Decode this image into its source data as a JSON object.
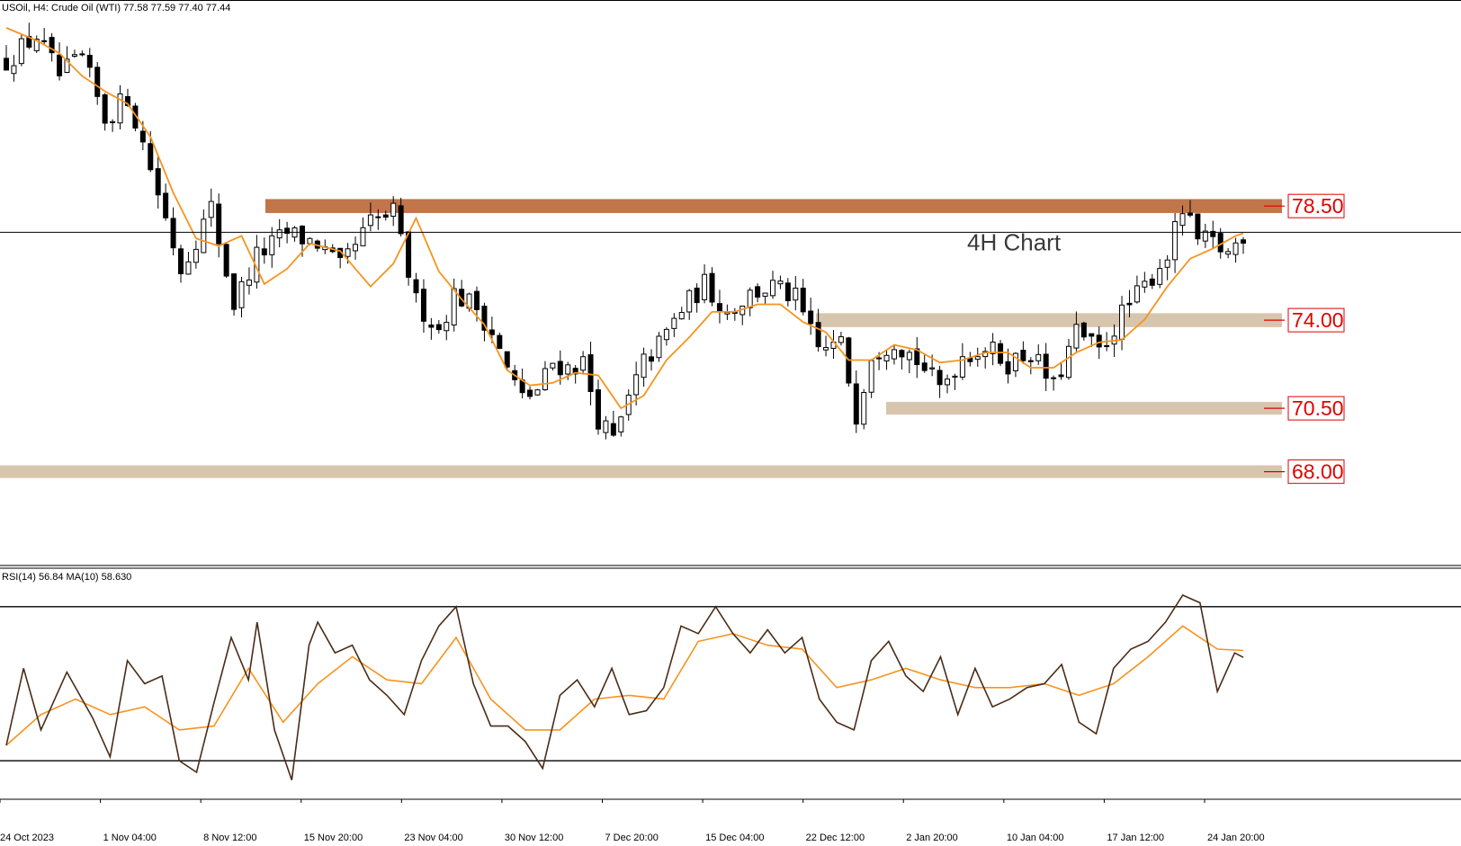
{
  "header": {
    "symbol_text": "USOil, H4:  Crude Oil (WTI)  77.58 77.59 77.40 77.44",
    "rsi_text": "RSI(14) 56.84 MA(10) 58.630"
  },
  "annotation": "4H Chart",
  "colors": {
    "resistance_zone": "#c0764a",
    "support_zone": "#d8c5ad",
    "ma_line": "#f7931e",
    "candle": "#000000",
    "rsi_line": "#4a2c17",
    "level_label": "#e00000"
  },
  "chart_data": [
    {
      "type": "candlestick",
      "symbol": "USOil",
      "timeframe": "H4",
      "current_price": 77.44,
      "ylim": [
        64.3,
        86.6
      ],
      "x_ticks": [
        "24 Oct 2023",
        "1 Nov 04:00",
        "8 Nov 12:00",
        "15 Nov 20:00",
        "23 Nov 04:00",
        "30 Nov 12:00",
        "7 Dec 20:00",
        "15 Dec 04:00",
        "22 Dec 12:00",
        "2 Jan 20:00",
        "10 Jan 04:00",
        "17 Jan 12:00",
        "24 Jan 20:00"
      ],
      "close_path": [
        [
          0,
          84.2
        ],
        [
          4,
          85.2
        ],
        [
          7,
          83.6
        ],
        [
          10,
          84.3
        ],
        [
          13,
          81.9
        ],
        [
          16,
          82.8
        ],
        [
          19,
          80.0
        ],
        [
          21,
          78.0
        ],
        [
          23,
          76.0
        ],
        [
          25,
          77.2
        ],
        [
          27,
          78.4
        ],
        [
          30,
          74.6
        ],
        [
          33,
          76.5
        ],
        [
          37,
          77.4
        ],
        [
          41,
          77.0
        ],
        [
          44,
          76.0
        ],
        [
          48,
          77.8
        ],
        [
          51,
          78.2
        ],
        [
          54,
          74.7
        ],
        [
          57,
          73.6
        ],
        [
          59,
          75.0
        ],
        [
          62,
          74.5
        ],
        [
          64,
          73.5
        ],
        [
          66,
          72.0
        ],
        [
          68,
          70.9
        ],
        [
          70,
          71.2
        ],
        [
          72,
          72.3
        ],
        [
          74,
          72.1
        ],
        [
          76,
          72.3
        ],
        [
          78,
          70.1
        ],
        [
          80,
          69.2
        ],
        [
          82,
          70.8
        ],
        [
          84,
          72.3
        ],
        [
          86,
          73.0
        ],
        [
          89,
          74.4
        ],
        [
          92,
          75.4
        ],
        [
          95,
          74.3
        ],
        [
          98,
          75.0
        ],
        [
          101,
          75.3
        ],
        [
          104,
          74.8
        ],
        [
          107,
          72.8
        ],
        [
          110,
          73.0
        ],
        [
          112,
          70.3
        ],
        [
          114,
          72.7
        ],
        [
          117,
          73.2
        ],
        [
          120,
          72.4
        ],
        [
          123,
          71.3
        ],
        [
          126,
          72.6
        ],
        [
          129,
          72.9
        ],
        [
          132,
          72.3
        ],
        [
          135,
          72.7
        ],
        [
          138,
          71.3
        ],
        [
          141,
          73.5
        ],
        [
          144,
          72.7
        ],
        [
          147,
          74.2
        ],
        [
          150,
          75.3
        ],
        [
          153,
          76.6
        ],
        [
          155,
          78.3
        ],
        [
          157,
          77.1
        ],
        [
          159,
          77.0
        ],
        [
          161,
          76.6
        ],
        [
          163,
          77.4
        ]
      ],
      "moving_average_path": [
        [
          0,
          85.5
        ],
        [
          4,
          85.0
        ],
        [
          7,
          84.5
        ],
        [
          10,
          83.6
        ],
        [
          13,
          83.0
        ],
        [
          16,
          82.5
        ],
        [
          19,
          81.2
        ],
        [
          22,
          79.0
        ],
        [
          25,
          77.2
        ],
        [
          28,
          76.9
        ],
        [
          31,
          77.3
        ],
        [
          34,
          75.4
        ],
        [
          37,
          76.0
        ],
        [
          40,
          77.0
        ],
        [
          44,
          76.7
        ],
        [
          48,
          75.3
        ],
        [
          51,
          76.2
        ],
        [
          54,
          78.0
        ],
        [
          57,
          75.9
        ],
        [
          60,
          74.8
        ],
        [
          63,
          73.8
        ],
        [
          66,
          72.0
        ],
        [
          69,
          71.4
        ],
        [
          72,
          71.5
        ],
        [
          75,
          71.9
        ],
        [
          78,
          71.8
        ],
        [
          81,
          70.5
        ],
        [
          84,
          71.0
        ],
        [
          87,
          72.4
        ],
        [
          90,
          73.3
        ],
        [
          93,
          74.3
        ],
        [
          96,
          74.3
        ],
        [
          99,
          74.6
        ],
        [
          102,
          74.6
        ],
        [
          105,
          73.9
        ],
        [
          108,
          73.5
        ],
        [
          111,
          72.4
        ],
        [
          114,
          72.4
        ],
        [
          117,
          73.0
        ],
        [
          120,
          72.8
        ],
        [
          123,
          72.3
        ],
        [
          126,
          72.4
        ],
        [
          129,
          72.7
        ],
        [
          132,
          72.7
        ],
        [
          135,
          72.1
        ],
        [
          138,
          72.1
        ],
        [
          141,
          72.7
        ],
        [
          144,
          73.1
        ],
        [
          147,
          73.2
        ],
        [
          150,
          74.0
        ],
        [
          153,
          75.3
        ],
        [
          156,
          76.4
        ],
        [
          159,
          76.8
        ],
        [
          162,
          77.3
        ],
        [
          163,
          77.4
        ]
      ],
      "levels": [
        {
          "label": "78.50",
          "low": 78.2,
          "high": 78.75,
          "role": "resistance"
        },
        {
          "label": "74.00",
          "low": 73.7,
          "high": 74.25,
          "role": "support"
        },
        {
          "label": "70.50",
          "low": 70.25,
          "high": 70.75,
          "role": "support"
        },
        {
          "label": "68.00",
          "low": 67.75,
          "high": 68.25,
          "role": "support"
        }
      ]
    },
    {
      "type": "line",
      "indicator": "RSI(14)",
      "rsi_value": 56.84,
      "ma_period": 10,
      "ma_value": 58.63,
      "ylim": [
        20,
        80
      ],
      "levels": [
        70,
        30
      ],
      "rsi_path": [
        [
          0,
          34
        ],
        [
          2,
          54
        ],
        [
          4,
          38
        ],
        [
          7,
          53
        ],
        [
          10,
          41
        ],
        [
          12,
          31
        ],
        [
          14,
          56
        ],
        [
          16,
          50
        ],
        [
          18,
          52
        ],
        [
          20,
          30
        ],
        [
          22,
          27
        ],
        [
          24,
          45
        ],
        [
          26,
          62
        ],
        [
          28,
          51
        ],
        [
          29,
          66
        ],
        [
          31,
          38
        ],
        [
          33,
          25
        ],
        [
          35,
          60
        ],
        [
          36,
          66
        ],
        [
          38,
          58
        ],
        [
          40,
          60
        ],
        [
          42,
          51
        ],
        [
          44,
          47
        ],
        [
          46,
          42
        ],
        [
          48,
          56
        ],
        [
          50,
          65
        ],
        [
          52,
          70
        ],
        [
          54,
          50
        ],
        [
          56,
          39
        ],
        [
          58,
          39
        ],
        [
          60,
          35
        ],
        [
          62,
          28
        ],
        [
          64,
          47
        ],
        [
          66,
          51
        ],
        [
          68,
          44
        ],
        [
          70,
          54
        ],
        [
          72,
          42
        ],
        [
          74,
          43
        ],
        [
          76,
          49
        ],
        [
          78,
          65
        ],
        [
          80,
          63
        ],
        [
          82,
          70
        ],
        [
          84,
          63
        ],
        [
          86,
          58
        ],
        [
          88,
          64
        ],
        [
          90,
          58
        ],
        [
          92,
          62
        ],
        [
          94,
          46
        ],
        [
          96,
          40
        ],
        [
          98,
          38
        ],
        [
          100,
          56
        ],
        [
          102,
          61
        ],
        [
          104,
          52
        ],
        [
          106,
          48
        ],
        [
          108,
          57
        ],
        [
          110,
          42
        ],
        [
          112,
          54
        ],
        [
          114,
          44
        ],
        [
          116,
          46
        ],
        [
          118,
          49
        ],
        [
          120,
          50
        ],
        [
          122,
          55
        ],
        [
          124,
          40
        ],
        [
          126,
          37
        ],
        [
          128,
          54
        ],
        [
          130,
          59
        ],
        [
          132,
          61
        ],
        [
          134,
          66
        ],
        [
          136,
          73
        ],
        [
          138,
          71
        ],
        [
          140,
          48
        ],
        [
          142,
          58
        ],
        [
          143,
          56.84
        ]
      ],
      "rsi_ma_path": [
        [
          0,
          34
        ],
        [
          4,
          42
        ],
        [
          8,
          46
        ],
        [
          12,
          42
        ],
        [
          16,
          44
        ],
        [
          20,
          38
        ],
        [
          24,
          39
        ],
        [
          28,
          54
        ],
        [
          32,
          40
        ],
        [
          36,
          50
        ],
        [
          40,
          57
        ],
        [
          44,
          51
        ],
        [
          48,
          50
        ],
        [
          52,
          62
        ],
        [
          56,
          46
        ],
        [
          60,
          38
        ],
        [
          64,
          38
        ],
        [
          68,
          46
        ],
        [
          72,
          47
        ],
        [
          76,
          46
        ],
        [
          80,
          61
        ],
        [
          84,
          63
        ],
        [
          88,
          60
        ],
        [
          92,
          59
        ],
        [
          96,
          49
        ],
        [
          100,
          51
        ],
        [
          104,
          54
        ],
        [
          108,
          51
        ],
        [
          112,
          49
        ],
        [
          116,
          49
        ],
        [
          120,
          50
        ],
        [
          124,
          47
        ],
        [
          128,
          50
        ],
        [
          132,
          57
        ],
        [
          136,
          65
        ],
        [
          140,
          59
        ],
        [
          143,
          58.63
        ]
      ]
    }
  ]
}
